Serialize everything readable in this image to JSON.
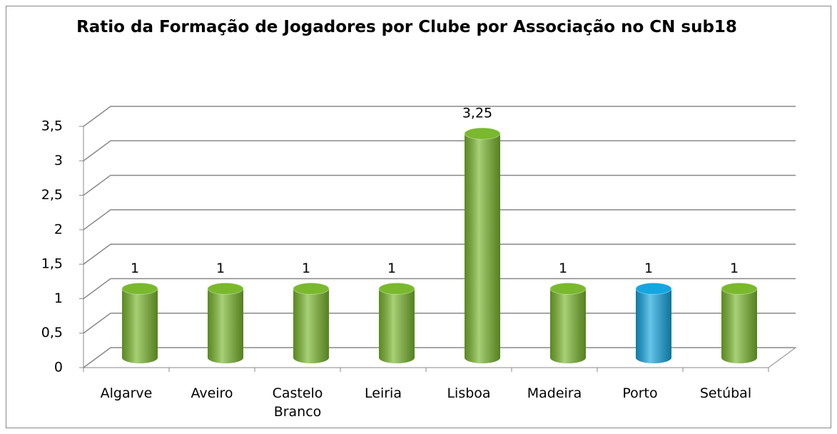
{
  "chart_data": {
    "type": "bar3d",
    "title": "Ratio da Formação de Jogadores por Clube por Associação no CN sub18",
    "categories": [
      "Algarve",
      "Aveiro",
      "Castelo Branco",
      "Leiria",
      "Lisboa",
      "Madeira",
      "Porto",
      "Setúbal"
    ],
    "values": [
      1,
      1,
      1,
      1,
      3.25,
      1,
      1,
      1
    ],
    "value_labels": [
      "1",
      "1",
      "1",
      "1",
      "3,25",
      "1",
      "1",
      "1"
    ],
    "colors": [
      "#7ab82e",
      "#7ab82e",
      "#7ab82e",
      "#7ab82e",
      "#7ab82e",
      "#7ab82e",
      "#14a6e0",
      "#7ab82e"
    ],
    "ylim": [
      0,
      3.5
    ],
    "yticks": [
      0,
      {
        "value": 0.5,
        "label": "0,5"
      },
      1,
      {
        "value": 1.5,
        "label": "1,5"
      },
      2,
      {
        "value": 2.5,
        "label": "2,5"
      },
      3,
      {
        "value": 3.5,
        "label": "3,5"
      }
    ],
    "grid": true
  }
}
